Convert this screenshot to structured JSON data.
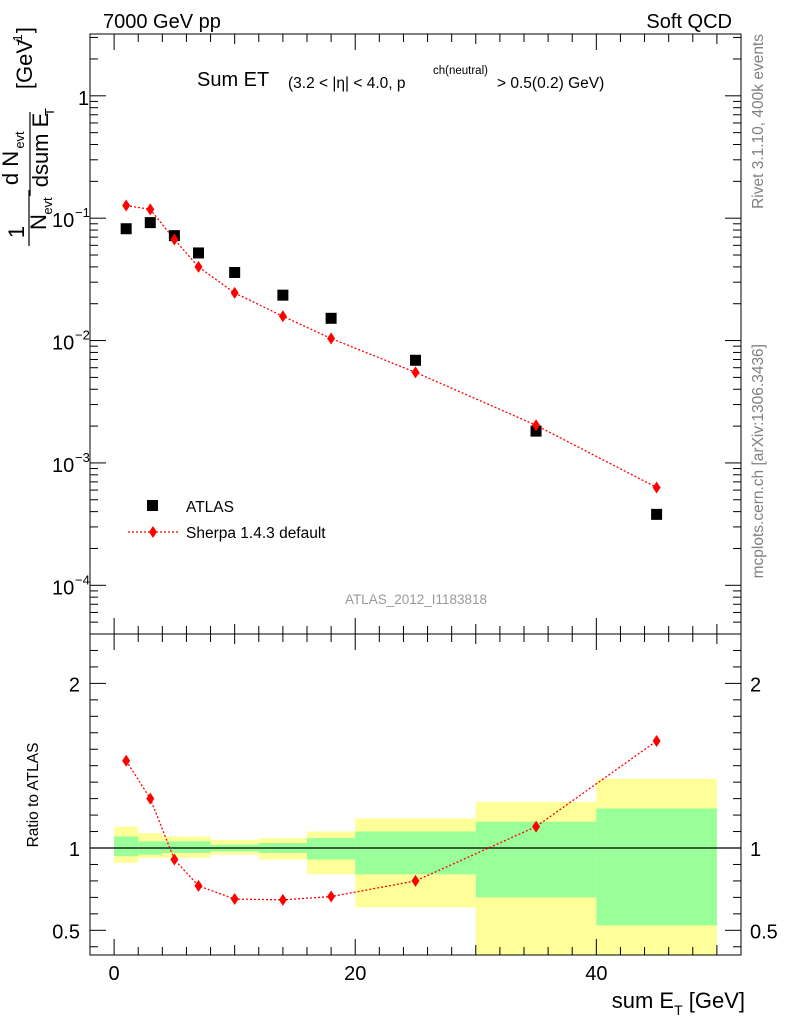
{
  "header": {
    "left": "7000 GeV pp",
    "right": "Soft QCD"
  },
  "side_labels": {
    "rivet": "Rivet 3.1.10,  400k events",
    "mcplots": "mcplots.cern.ch [arXiv:1306.3436]"
  },
  "watermark": "ATLAS_2012_I1183818",
  "chart_data": [
    {
      "type": "scatter",
      "title": "Sum ET",
      "title_suffix_pre": "(3.2 < |η| < 4.0, p",
      "title_suffix_sup": "ch(neutral)",
      "title_suffix_post": " > 0.5(0.2) GeV)",
      "ylabel": "1/N_evt dN_evt/dsum E_T [GeV^-1]",
      "yscale": "log",
      "ylim": [
        4e-05,
        3.2
      ],
      "xlim": [
        -2,
        52
      ],
      "y_ticks": [
        {
          "value": 1,
          "label": "1"
        },
        {
          "value": 0.1,
          "label": "10",
          "exp": "−1"
        },
        {
          "value": 0.01,
          "label": "10",
          "exp": "−2"
        },
        {
          "value": 0.001,
          "label": "10",
          "exp": "−3"
        },
        {
          "value": 0.0001,
          "label": "10",
          "exp": "−4"
        }
      ],
      "legend_placement": "lower-left",
      "series": [
        {
          "name": "ATLAS",
          "marker": "square",
          "color": "#000000",
          "x": [
            1,
            3,
            5,
            7,
            10,
            14,
            18,
            25,
            35,
            45
          ],
          "values": [
            0.082,
            0.092,
            0.072,
            0.052,
            0.036,
            0.0235,
            0.0152,
            0.0069,
            0.00182,
            0.00038
          ]
        },
        {
          "name": "Sherpa 1.4.3 default",
          "marker": "diamond",
          "line": "dotted",
          "color": "#ff0000",
          "x": [
            1,
            3,
            5,
            7,
            10,
            14,
            18,
            25,
            35,
            45
          ],
          "values": [
            0.127,
            0.118,
            0.067,
            0.04,
            0.0245,
            0.0158,
            0.0104,
            0.0055,
            0.00203,
            0.00063
          ]
        }
      ]
    },
    {
      "type": "scatter",
      "ylabel": "Ratio to ATLAS",
      "xlabel": "sum E",
      "xlabel_sub": "T",
      "xlabel_unit": " [GeV]",
      "yscale": "linear",
      "ylim": [
        0.35,
        2.3
      ],
      "xlim": [
        -2,
        52
      ],
      "x_ticks": [
        0,
        20,
        40
      ],
      "y_ticks": [
        0.5,
        1,
        2
      ],
      "reference_line": 1,
      "bands": [
        {
          "x0": 0,
          "x1": 2,
          "yellow": [
            0.91,
            1.13
          ],
          "green": [
            0.95,
            1.07
          ]
        },
        {
          "x0": 2,
          "x1": 4,
          "yellow": [
            0.94,
            1.09
          ],
          "green": [
            0.96,
            1.04
          ]
        },
        {
          "x0": 4,
          "x1": 8,
          "yellow": [
            0.94,
            1.07
          ],
          "green": [
            0.97,
            1.04
          ]
        },
        {
          "x0": 8,
          "x1": 12,
          "yellow": [
            0.96,
            1.05
          ],
          "green": [
            0.98,
            1.02
          ]
        },
        {
          "x0": 12,
          "x1": 16,
          "yellow": [
            0.93,
            1.06
          ],
          "green": [
            0.97,
            1.03
          ]
        },
        {
          "x0": 16,
          "x1": 20,
          "yellow": [
            0.84,
            1.1
          ],
          "green": [
            0.93,
            1.06
          ]
        },
        {
          "x0": 20,
          "x1": 30,
          "yellow": [
            0.64,
            1.18
          ],
          "green": [
            0.84,
            1.1
          ]
        },
        {
          "x0": 30,
          "x1": 40,
          "yellow": [
            0.35,
            1.28
          ],
          "green": [
            0.7,
            1.16
          ]
        },
        {
          "x0": 40,
          "x1": 50,
          "yellow": [
            0.35,
            1.42
          ],
          "green": [
            0.53,
            1.24
          ]
        }
      ],
      "band_colors": {
        "yellow": "#ffff99",
        "green": "#99ff99"
      },
      "series": [
        {
          "name": "Sherpa 1.4.3 default",
          "marker": "diamond",
          "line": "dotted",
          "color": "#ff0000",
          "x": [
            1,
            3,
            5,
            7,
            10,
            14,
            18,
            25,
            35,
            45
          ],
          "values": [
            1.53,
            1.3,
            0.93,
            0.77,
            0.69,
            0.685,
            0.705,
            0.8,
            1.13,
            1.65
          ]
        }
      ]
    }
  ]
}
